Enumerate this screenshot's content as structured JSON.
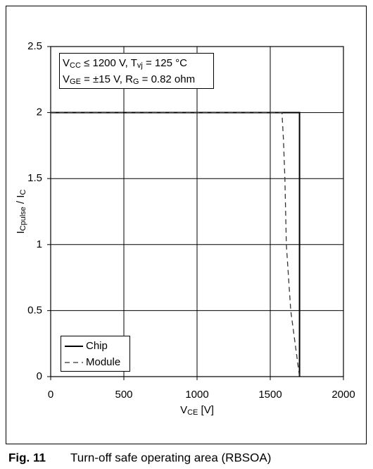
{
  "chart_data": {
    "type": "line",
    "figure_label": "Fig. 11",
    "caption": "Turn-off safe operating area (RBSOA)",
    "xlabel": [
      {
        "text": "V"
      },
      {
        "text": "CE",
        "sub": true
      },
      {
        "text": " [V]"
      }
    ],
    "ylabel": [
      {
        "text": "I"
      },
      {
        "text": "Cpulse",
        "sub": true
      },
      {
        "text": " / I"
      },
      {
        "text": "C",
        "sub": true
      }
    ],
    "annotation": [
      [
        {
          "text": "V"
        },
        {
          "text": "CC",
          "sub": true
        },
        {
          "text": " ≤ 1200 V, T"
        },
        {
          "text": "vj",
          "sub": true
        },
        {
          "text": " = 125 °C"
        }
      ],
      [
        {
          "text": "V"
        },
        {
          "text": "GE",
          "sub": true
        },
        {
          "text": " = ±15 V, R"
        },
        {
          "text": "G",
          "sub": true
        },
        {
          "text": " = 0.82 ohm"
        }
      ]
    ],
    "xlim": [
      0,
      2000
    ],
    "xticks": [
      0,
      500,
      1000,
      1500,
      2000
    ],
    "ylim": [
      0,
      2.5
    ],
    "yticks": [
      0,
      0.5,
      1,
      1.5,
      2,
      2.5
    ],
    "grid": true,
    "legend": "lower left",
    "series": [
      {
        "name": "Chip",
        "color": "#000000",
        "dash": "solid",
        "x": [
          0,
          1700,
          1700
        ],
        "values": [
          2,
          2,
          0
        ]
      },
      {
        "name": "Module",
        "color": "#333333",
        "dash": "dashed",
        "x": [
          0,
          1580,
          1590,
          1600,
          1610,
          1640,
          1670,
          1700
        ],
        "values": [
          2,
          2,
          1.8,
          1.5,
          1,
          0.5,
          0.25,
          0
        ]
      }
    ]
  }
}
